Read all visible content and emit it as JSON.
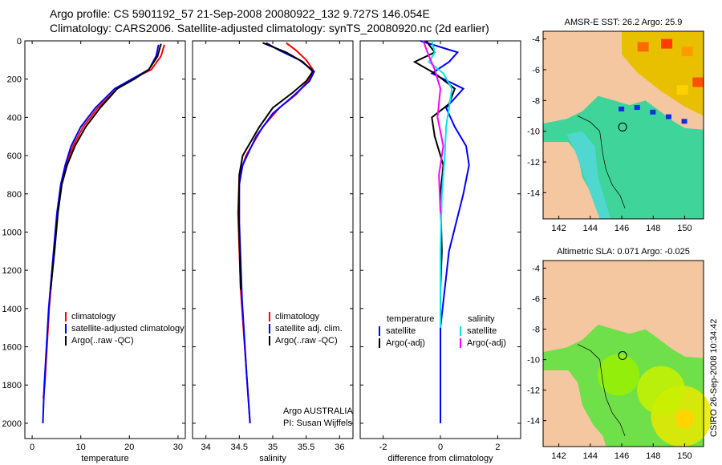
{
  "header": {
    "line1": "Argo profile: CS 5901192_57 21-Sep-2008 20080922_132 9.727S 146.054E",
    "line2": "Climatology: CARS2006. Satellite-adjusted climatology: synTS_20080920.nc (2d earlier)"
  },
  "colors": {
    "clim": "#ff0000",
    "sat": "#0000ff",
    "argo": "#000000",
    "sal_sat": "#00e5ee",
    "sal_argo": "#ff00ff",
    "land": "#f5c7a0"
  },
  "chart_data": [
    {
      "type": "line",
      "xlabel": "temperature",
      "ylabel": "",
      "xlim": [
        -1.5,
        31.5
      ],
      "ylim": [
        2080,
        0
      ],
      "xticks": [
        "0",
        "10",
        "20",
        "30"
      ],
      "yticks": [
        "0",
        "200",
        "400",
        "600",
        "800",
        "1000",
        "1200",
        "1400",
        "1600",
        "1800",
        "2000"
      ],
      "legend": [
        "climatology",
        "satellite-adjusted climatology",
        "Argo(..raw -QC)"
      ],
      "series": [
        {
          "name": "climatology",
          "x": [
            27.2,
            26.5,
            24.5,
            20.5,
            17.5,
            13.5,
            10.5,
            8.4,
            7.0,
            6.0,
            5.2,
            4.5,
            3.5,
            2.6,
            2.3
          ],
          "y": [
            20,
            80,
            150,
            200,
            250,
            350,
            450,
            550,
            650,
            750,
            900,
            1100,
            1400,
            1800,
            1870
          ]
        },
        {
          "name": "satellite-adjusted climatology",
          "x": [
            26.0,
            25.5,
            24.0,
            20.5,
            17.0,
            13.0,
            10.0,
            8.0,
            6.8,
            5.9,
            5.1,
            4.4,
            3.4,
            2.5,
            2.2
          ],
          "y": [
            20,
            80,
            150,
            200,
            250,
            350,
            450,
            550,
            650,
            750,
            900,
            1100,
            1400,
            1800,
            2000
          ]
        },
        {
          "name": "Argo(..raw -QC)",
          "x": [
            26.5,
            25.8,
            24.0,
            21.0,
            17.5,
            14.0,
            11.0,
            8.8,
            7.2,
            6.1,
            5.3,
            4.6,
            3.8
          ],
          "y": [
            15,
            80,
            150,
            200,
            250,
            350,
            450,
            550,
            650,
            750,
            900,
            1100,
            1300
          ]
        }
      ]
    },
    {
      "type": "line",
      "xlabel": "salinity",
      "xlim": [
        33.8,
        36.2
      ],
      "ylim": [
        2080,
        0
      ],
      "xticks": [
        "34",
        "34.5",
        "35",
        "35.5",
        "36"
      ],
      "legend": [
        "climatology",
        "satellite adj. clim.",
        "Argo(..raw -QC)"
      ],
      "annotation": [
        "Argo AUSTRALIA",
        "PI: Susan Wijffels"
      ],
      "series": [
        {
          "name": "climatology",
          "x": [
            35.2,
            35.35,
            35.5,
            35.6,
            35.55,
            35.35,
            35.1,
            34.85,
            34.6,
            34.5,
            34.48,
            34.52,
            34.6,
            34.66
          ],
          "y": [
            10,
            50,
            100,
            150,
            200,
            280,
            350,
            450,
            600,
            700,
            900,
            1300,
            1700,
            2000
          ]
        },
        {
          "name": "satellite adj. clim.",
          "x": [
            34.9,
            35.1,
            35.4,
            35.62,
            35.55,
            35.3,
            35.0,
            34.75,
            34.55,
            34.5,
            34.5,
            34.54,
            34.61,
            34.66
          ],
          "y": [
            10,
            50,
            100,
            160,
            210,
            290,
            380,
            500,
            650,
            750,
            950,
            1350,
            1750,
            2000
          ]
        },
        {
          "name": "Argo(..raw -QC)",
          "x": [
            34.85,
            35.2,
            35.45,
            35.6,
            35.5,
            35.3,
            35.0,
            34.8,
            34.55,
            34.5,
            34.49,
            34.52
          ],
          "y": [
            10,
            60,
            110,
            160,
            210,
            270,
            350,
            450,
            600,
            700,
            900,
            1300
          ]
        }
      ]
    },
    {
      "type": "line",
      "xlabel": "difference from climatology",
      "xlim": [
        -2.8,
        2.8
      ],
      "ylim": [
        2080,
        0
      ],
      "xticks": [
        "-2",
        "0",
        "2"
      ],
      "legend_left_title": "temperature",
      "legend_right_title": "salinity",
      "legend_left": [
        "satellite",
        "Argo(-adj)"
      ],
      "legend_right": [
        "satellite",
        "Argo(-adj)"
      ],
      "series": [
        {
          "name": "satellite",
          "group": "temperature",
          "x": [
            -0.7,
            0.6,
            0.3,
            -0.3,
            0.8,
            0.2,
            0.5,
            0.9,
            1.0,
            0.8,
            0.3,
            0.0,
            0.0
          ],
          "y": [
            0,
            60,
            110,
            170,
            250,
            350,
            450,
            550,
            650,
            800,
            1100,
            1500,
            2000
          ]
        },
        {
          "name": "Argo(-adj)",
          "group": "temperature",
          "x": [
            -0.5,
            -0.2,
            -0.9,
            -0.2,
            0.5,
            0.3,
            -0.3,
            -0.2,
            0.1,
            0.0,
            0.05,
            0.0
          ],
          "y": [
            0,
            60,
            110,
            170,
            250,
            330,
            400,
            500,
            650,
            800,
            1100,
            1300
          ]
        },
        {
          "name": "satellite",
          "group": "salinity",
          "x": [
            -0.3,
            -0.2,
            -0.4,
            0.1,
            0.4,
            0.3,
            0.2,
            0.15,
            0.05,
            0.0,
            0.0
          ],
          "y": [
            0,
            60,
            110,
            170,
            250,
            350,
            450,
            600,
            800,
            1100,
            1500
          ]
        },
        {
          "name": "Argo(-adj)",
          "group": "salinity",
          "x": [
            -0.6,
            -0.4,
            -0.2,
            0.0,
            -0.1,
            0.1,
            -0.05,
            0.0
          ],
          "y": [
            0,
            80,
            150,
            250,
            400,
            550,
            700,
            900
          ]
        }
      ]
    },
    {
      "type": "heatmap",
      "title": "AMSR-E SST: 26.2 Argo: 25.9",
      "xticks": [
        "142",
        "144",
        "146",
        "148",
        "150"
      ],
      "yticks": [
        "-4",
        "-6",
        "-8",
        "-10",
        "-12",
        "-14"
      ]
    },
    {
      "type": "heatmap",
      "title": "Altimetric SLA: 0.071 Argo: -0.025",
      "xticks": [
        "142",
        "144",
        "146",
        "148",
        "150"
      ],
      "yticks": [
        "-4",
        "-6",
        "-8",
        "-10",
        "-12",
        "-14"
      ]
    }
  ],
  "sidebar_text": "CSIRO 26-Sep-2008 10:34:42"
}
